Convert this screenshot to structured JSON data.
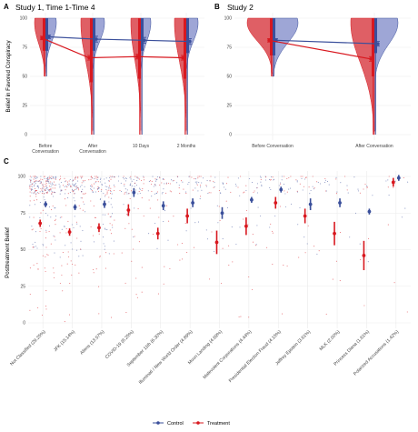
{
  "colors": {
    "control": "#3a4f9b",
    "treatment": "#d8181f",
    "control_fill": "#8d97cf",
    "treatment_fill": "#d9434a",
    "grid": "#ebebeb"
  },
  "legend": {
    "control": "Control",
    "treatment": "Treatment"
  },
  "chart_data": [
    {
      "type": "line",
      "panel": "A",
      "title": "Study 1, Time 1-Time 4",
      "ylabel": "Belief in Favored Conspiracy",
      "ylim": [
        0,
        100
      ],
      "yticks": [
        "0",
        "25",
        "50",
        "75",
        "100"
      ],
      "categories": [
        "Before\nConversation",
        "After\nConversation",
        "10 Days",
        "2 Months"
      ],
      "series": [
        {
          "name": "Control",
          "values": [
            84,
            82,
            81,
            80
          ],
          "ci": [
            1.5,
            2.5,
            2.5,
            2.5
          ]
        },
        {
          "name": "Treatment",
          "values": [
            83,
            66,
            67,
            66
          ],
          "ci": [
            1.5,
            2,
            2,
            2
          ]
        }
      ]
    },
    {
      "type": "line",
      "panel": "B",
      "title": "Study 2",
      "ylim": [
        0,
        100
      ],
      "yticks": [
        "0",
        "25",
        "50",
        "75",
        "100"
      ],
      "categories": [
        "Before Conversation",
        "After Conversation"
      ],
      "series": [
        {
          "name": "Control",
          "values": [
            81,
            78
          ],
          "ci": [
            1.5,
            2
          ]
        },
        {
          "name": "Treatment",
          "values": [
            81,
            65
          ],
          "ci": [
            1.5,
            2
          ]
        }
      ]
    },
    {
      "type": "scatter",
      "panel": "C",
      "ylabel": "Posttreatment Belief",
      "ylim": [
        0,
        100
      ],
      "yticks": [
        "0",
        "25",
        "50",
        "75",
        "100"
      ],
      "categories": [
        "Not Classified (29.25%)",
        "JFK (15.14%)",
        "Aliens (13.57%)",
        "COVID-19 (8.25%)",
        "September 11th (6.30%)",
        "Illuminati / New World Order (4.89%)",
        "Moon Landing (4.69%)",
        "Malevolent Corporations (4.44%)",
        "Presidential Election Fraud (4.15%)",
        "Jeffrey Epstein (3.61%)",
        "MLK (2.00%)",
        "Princess Diana (1.61%)",
        "Polarized Accusations (1.42%)"
      ],
      "series": [
        {
          "name": "Control",
          "values": [
            81,
            79,
            81,
            89,
            80,
            82,
            75,
            84,
            91,
            81,
            82,
            76,
            99
          ],
          "ci": [
            2,
            2,
            2.5,
            3,
            3,
            3,
            4,
            2,
            2,
            4,
            3,
            2,
            2
          ]
        },
        {
          "name": "Treatment",
          "values": [
            68,
            62,
            65,
            77,
            61,
            73,
            55,
            66,
            82,
            73,
            61,
            46,
            96
          ],
          "ci": [
            2.5,
            2.5,
            3,
            4,
            4,
            5,
            8,
            6,
            4,
            5,
            8,
            10,
            3
          ]
        }
      ]
    }
  ]
}
